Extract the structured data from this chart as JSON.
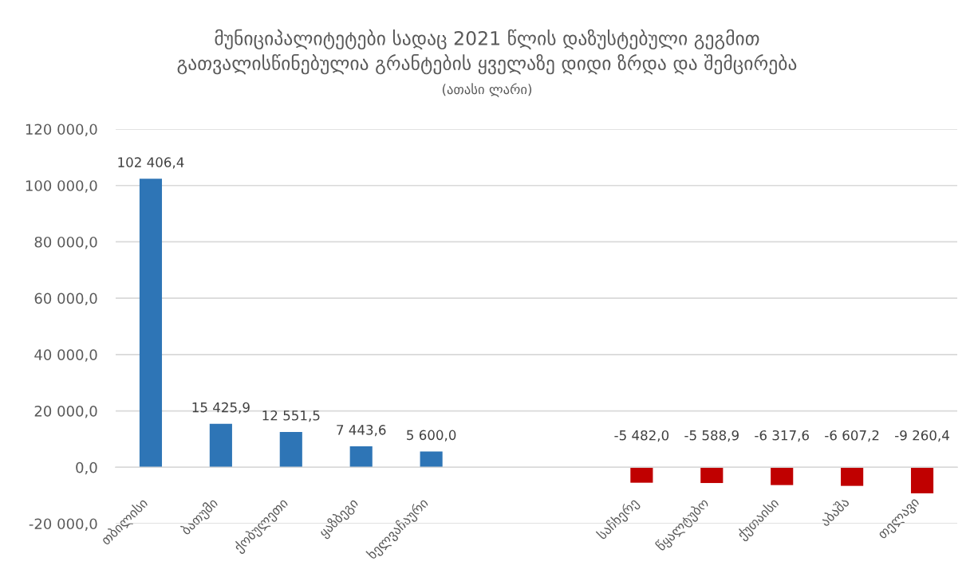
{
  "chart_data": {
    "type": "bar",
    "title": "მუნიციპალიტეტები სადაც 2021 წლის დაზუსტებული გეგმით გათვალისწინებულია გრანტების ყველაზე დიდი ზრდა და შემცირება",
    "subtitle": "(ათასი ლარი)",
    "categories": [
      "თბილისი",
      "ბათუმი",
      "ქობულეთი",
      "ყაზბეგი",
      "ხელვაჩაური",
      null,
      null,
      "საჩხერე",
      "წყალტუბო",
      "ქუთაისი",
      "აბაშა",
      "თელავი"
    ],
    "values": [
      102406.4,
      15425.9,
      12551.5,
      7443.6,
      5600.0,
      null,
      null,
      -5482.0,
      -5588.9,
      -6317.6,
      -6607.2,
      -9260.4
    ],
    "value_labels": [
      "102 406,4",
      "15 425,9",
      "12 551,5",
      "7 443,6",
      "5 600,0",
      null,
      null,
      "-5 482,0",
      "-5 588,9",
      "-6 317,6",
      "-6 607,2",
      "-9 260,4"
    ],
    "colors": [
      "#2e75b6",
      "#2e75b6",
      "#2e75b6",
      "#2e75b6",
      "#2e75b6",
      null,
      null,
      "#c00000",
      "#c00000",
      "#c00000",
      "#c00000",
      "#c00000"
    ],
    "ylim": [
      -20000,
      120000
    ],
    "yticks": [
      {
        "value": -20000,
        "label": "-20 000,0"
      },
      {
        "value": 0,
        "label": "0,0"
      },
      {
        "value": 20000,
        "label": "20 000,0"
      },
      {
        "value": 40000,
        "label": "40 000,0"
      },
      {
        "value": 60000,
        "label": "60 000,0"
      },
      {
        "value": 80000,
        "label": "80 000,0"
      },
      {
        "value": 100000,
        "label": "100 000,0"
      },
      {
        "value": 120000,
        "label": "120 000,0"
      }
    ],
    "grid": "y"
  }
}
